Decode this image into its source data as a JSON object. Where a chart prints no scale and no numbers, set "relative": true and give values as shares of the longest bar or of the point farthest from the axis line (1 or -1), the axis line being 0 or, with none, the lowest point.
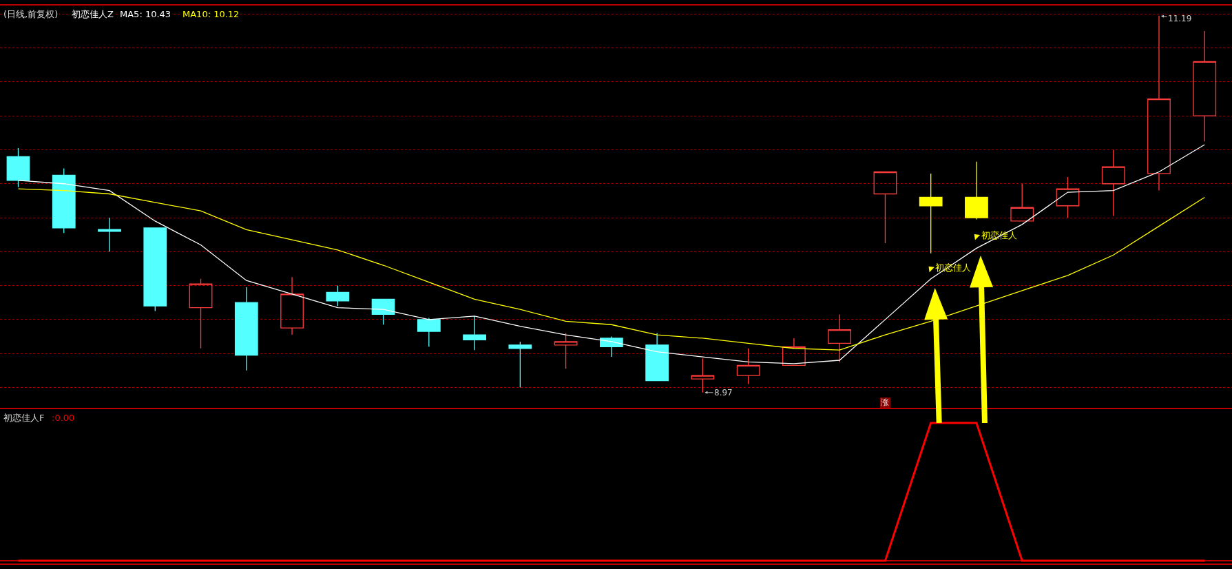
{
  "chart_data": [
    {
      "type": "candlestick",
      "title": "(日线,前复权)",
      "subtitle": "初恋佳人Z",
      "categories": [
        null,
        null,
        null,
        null,
        null,
        null,
        null,
        null,
        null,
        null,
        null,
        null,
        null,
        null,
        null,
        null,
        null,
        null,
        null,
        null,
        null,
        null,
        null,
        null,
        null,
        null,
        null
      ],
      "ohlc": [
        [
          10.36,
          10.41,
          10.18,
          10.22
        ],
        [
          10.25,
          10.29,
          9.91,
          9.94
        ],
        [
          9.93,
          10.0,
          9.8,
          9.92
        ],
        [
          9.94,
          9.94,
          9.45,
          9.48
        ],
        [
          9.47,
          9.64,
          9.23,
          9.61
        ],
        [
          9.5,
          9.59,
          9.1,
          9.19
        ],
        [
          9.35,
          9.65,
          9.31,
          9.55
        ],
        [
          9.56,
          9.6,
          9.48,
          9.51
        ],
        [
          9.52,
          9.52,
          9.37,
          9.43
        ],
        [
          9.4,
          9.41,
          9.24,
          9.33
        ],
        [
          9.31,
          9.42,
          9.22,
          9.28
        ],
        [
          9.25,
          9.27,
          9.0,
          9.23
        ],
        [
          9.25,
          9.32,
          9.11,
          9.27
        ],
        [
          9.29,
          9.3,
          9.18,
          9.24
        ],
        [
          9.25,
          9.32,
          9.04,
          9.04
        ],
        [
          9.05,
          9.17,
          8.97,
          9.07
        ],
        [
          9.07,
          9.23,
          9.02,
          9.13
        ],
        [
          9.13,
          9.29,
          9.13,
          9.24
        ],
        [
          9.26,
          9.43,
          9.15,
          9.34
        ],
        [
          10.14,
          10.27,
          9.85,
          10.27
        ],
        [
          10.12,
          10.26,
          9.79,
          10.07
        ],
        [
          10.12,
          10.33,
          9.99,
          10.0
        ],
        [
          9.98,
          10.2,
          9.98,
          10.06
        ],
        [
          10.07,
          10.24,
          10.0,
          10.17
        ],
        [
          10.2,
          10.4,
          10.01,
          10.3
        ],
        [
          10.26,
          11.19,
          10.16,
          10.7
        ],
        [
          10.6,
          11.1,
          10.45,
          10.92
        ]
      ],
      "colors": [
        "#54ffff",
        "#54ffff",
        "#54ffff",
        "#54ffff",
        "#ff3c3c",
        "#54ffff",
        "#ff3c3c",
        "#54ffff",
        "#54ffff",
        "#54ffff",
        "#54ffff",
        "#54ffff",
        "#ff3c3c",
        "#54ffff",
        "#54ffff",
        "#ff3c3c",
        "#ff3c3c",
        "#ff3c3c",
        "#ff3c3c",
        "#ff3c3c",
        "#ffff00",
        "#ffff00",
        "#ff3c3c",
        "#ff3c3c",
        "#ff3c3c",
        "#ff3c3c",
        "#ff3c3c"
      ],
      "value_labels": [
        null,
        null,
        null,
        null,
        null,
        null,
        null,
        null,
        null,
        null,
        null,
        null,
        null,
        null,
        null,
        "8.97",
        null,
        null,
        null,
        null,
        null,
        null,
        null,
        null,
        null,
        "11.19",
        null
      ],
      "series": [
        {
          "name": "MA5: 10.43",
          "type": "line",
          "color": "#ffffff",
          "values": [
            10.22,
            10.2,
            10.16,
            9.98,
            9.84,
            9.63,
            9.55,
            9.47,
            9.46,
            9.4,
            9.42,
            9.36,
            9.31,
            9.27,
            9.21,
            9.18,
            9.15,
            9.14,
            9.16,
            9.4,
            9.64,
            9.82,
            9.96,
            10.15,
            10.16,
            10.27,
            10.43
          ]
        },
        {
          "name": "MA10: 10.12",
          "type": "line",
          "color": "#ffff00",
          "values": [
            10.17,
            10.16,
            10.14,
            10.09,
            10.04,
            9.93,
            9.87,
            9.81,
            9.72,
            9.62,
            9.52,
            9.46,
            9.39,
            9.37,
            9.31,
            9.29,
            9.26,
            9.23,
            9.22,
            9.31,
            9.39,
            9.48,
            9.57,
            9.66,
            9.78,
            9.95,
            10.12
          ]
        },
        {
          "type": "scatter",
          "color": "#ffff00",
          "marker": "triangle",
          "values": [
            null,
            null,
            null,
            null,
            null,
            null,
            null,
            null,
            null,
            null,
            null,
            null,
            null,
            null,
            null,
            null,
            null,
            null,
            null,
            null,
            9.7,
            9.89,
            null,
            null,
            null,
            null,
            null
          ],
          "value_labels": [
            null,
            null,
            null,
            null,
            null,
            null,
            null,
            null,
            null,
            null,
            null,
            null,
            null,
            null,
            null,
            null,
            null,
            null,
            null,
            null,
            "初恋佳人",
            "初恋佳人",
            null,
            null,
            null,
            null,
            null
          ]
        },
        {
          "type": "scatter",
          "color": "#8b0000",
          "marker": "square",
          "values": [
            null,
            null,
            null,
            null,
            null,
            null,
            null,
            null,
            null,
            null,
            null,
            null,
            null,
            null,
            null,
            null,
            null,
            null,
            null,
            8.91,
            null,
            null,
            null,
            null,
            null,
            null,
            null
          ],
          "value_labels": [
            null,
            null,
            null,
            null,
            null,
            null,
            null,
            null,
            null,
            null,
            null,
            null,
            null,
            null,
            null,
            null,
            null,
            null,
            null,
            "涨",
            null,
            null,
            null,
            null,
            null,
            null,
            null
          ]
        }
      ],
      "ylim": [
        8.88,
        11.25
      ],
      "yticks": [
        {
          "value": 9.0,
          "label": null
        },
        {
          "value": 9.2,
          "label": null
        },
        {
          "value": 9.4,
          "label": null
        },
        {
          "value": 9.6,
          "label": null
        },
        {
          "value": 9.8,
          "label": null
        },
        {
          "value": 10.0,
          "label": null
        },
        {
          "value": 10.2,
          "label": null
        },
        {
          "value": 10.4,
          "label": null
        },
        {
          "value": 10.6,
          "label": null
        },
        {
          "value": 10.8,
          "label": null
        },
        {
          "value": 11.0,
          "label": null
        },
        {
          "value": 11.2,
          "label": null
        }
      ],
      "grid": "y",
      "marker": "none",
      "line_style": "solid"
    },
    {
      "type": "line",
      "title": "初恋佳人F",
      "categories": [
        null,
        null,
        null,
        null,
        null,
        null,
        null,
        null,
        null,
        null,
        null,
        null,
        null,
        null,
        null,
        null,
        null,
        null,
        null,
        null,
        null,
        null,
        null,
        null,
        null,
        null,
        null
      ],
      "series": [
        {
          "color": "#ff0000",
          "values": [
            0,
            0,
            0,
            0,
            0,
            0,
            0,
            0,
            0,
            0,
            0,
            0,
            0,
            0,
            0,
            0,
            0,
            0,
            0,
            0,
            1,
            1,
            0,
            0,
            0,
            0,
            0
          ]
        }
      ],
      "relative": true,
      "annotations": [
        ":0.00"
      ]
    }
  ]
}
